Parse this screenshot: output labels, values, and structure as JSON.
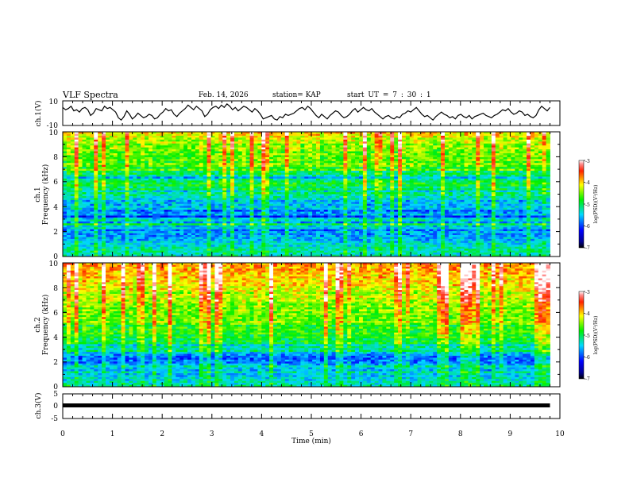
{
  "header": {
    "title": "VLF Spectra",
    "date": "Feb. 14, 2026",
    "station": "station= KAP",
    "start_time": "start  UT =   7 : 30 : 1"
  },
  "chart_data": [
    {
      "id": "ch1-waveform",
      "type": "line",
      "ylabel": "ch.1(V)",
      "ylim": [
        -10,
        10
      ],
      "yticks": [
        "10",
        "-10"
      ],
      "xlim": [
        0,
        9.8
      ],
      "y": [
        5,
        3,
        4,
        6,
        2,
        3,
        1,
        4,
        5,
        3,
        -2,
        0,
        4,
        3,
        2,
        6,
        4,
        5,
        3,
        1,
        -4,
        -6,
        -3,
        2,
        -1,
        -5,
        -3,
        0,
        -2,
        -4,
        -3,
        -1,
        -2,
        -5,
        -4,
        -1,
        1,
        4,
        2,
        3,
        -1,
        -3,
        0,
        2,
        4,
        7,
        5,
        3,
        6,
        4,
        2,
        -3,
        -1,
        3,
        5,
        6,
        4,
        7,
        5,
        8,
        6,
        3,
        5,
        2,
        4,
        6,
        5,
        3,
        1,
        4,
        2,
        -1,
        -5,
        -4,
        -3,
        -2,
        -5,
        -6,
        -3,
        -4,
        -1,
        -2,
        -1,
        0,
        2,
        4,
        5,
        3,
        6,
        4,
        1,
        -2,
        -4,
        -1,
        -3,
        -5,
        -2,
        0,
        2,
        1,
        -2,
        -4,
        -3,
        -1,
        2,
        4,
        1,
        3,
        5,
        3,
        2,
        4,
        1,
        -1,
        -3,
        -5,
        -3,
        -2,
        -4,
        -5,
        -3,
        -4,
        -1,
        0,
        2,
        1,
        3,
        5,
        2,
        -1,
        -3,
        -2,
        -4,
        -6,
        -3,
        -1,
        1,
        -1,
        -2,
        -4,
        -3,
        -5,
        -2,
        -1,
        -3,
        -4,
        -2,
        -5,
        -3,
        -2,
        -1,
        0,
        -2,
        -3,
        -4,
        -2,
        -1,
        1,
        3,
        2,
        4,
        1,
        -1,
        0,
        2,
        1,
        -2,
        -1,
        -3,
        -4,
        -2,
        3,
        6,
        4,
        2,
        5
      ]
    },
    {
      "id": "ch1-spectrogram",
      "type": "heatmap",
      "ylabel": "Frequency (kHz)",
      "channel_label": "ch.1",
      "ylim": [
        0,
        10
      ],
      "yticks": [
        "0",
        "2",
        "4",
        "6",
        "8",
        "10"
      ],
      "colorbar": {
        "label": "log(PSD)(V²/Hz)",
        "range": [
          -7,
          -3
        ],
        "ticks": [
          "-3",
          "-4",
          "-5",
          "-6",
          "-7"
        ]
      },
      "profile": [
        -5.3,
        -5.3,
        -5.2,
        -5.2,
        -5.3,
        -5.4,
        -5.4,
        -5.5,
        -5.6,
        -5.6,
        -5.7,
        -5.7,
        -5.6,
        -5.8,
        -5.5,
        -5.5,
        -5.0,
        -5.7,
        -5.3,
        -5.5,
        -6.1,
        -5.6,
        -5.7,
        -5.9,
        -5.5,
        -5.5,
        -5.6,
        -5.5,
        -5.6,
        -5.4,
        -5.3,
        -5.2,
        -5.1,
        -5.4,
        -5.0,
        -5.1,
        -4.9,
        -4.9,
        -5.0,
        -5.2,
        -5.6,
        -5.2,
        -5.0,
        -5.1,
        -4.6,
        -4.9,
        -4.6,
        -4.5,
        -4.7,
        -4.5,
        -4.6,
        -4.6,
        -4.5,
        -4.6,
        -4.5,
        -4.4,
        -4.4,
        -4.5,
        -4.3,
        -4.3,
        -4.3,
        -4.2,
        -4.1,
        -4.0
      ]
    },
    {
      "id": "ch2-spectrogram",
      "type": "heatmap",
      "ylabel": "Frequency (kHz)",
      "channel_label": "ch.2",
      "ylim": [
        0,
        10
      ],
      "yticks": [
        "0",
        "2",
        "4",
        "6",
        "8",
        "10"
      ],
      "colorbar": {
        "label": "log(PSD)(V²/Hz)",
        "range": [
          -7,
          -3
        ],
        "ticks": [
          "-3",
          "-4",
          "-5",
          "-6",
          "-7"
        ]
      },
      "profile": [
        -5.2,
        -5.3,
        -5.3,
        -5.4,
        -5.4,
        -5.5,
        -5.5,
        -5.3,
        -5.6,
        -5.5,
        -5.3,
        -5.6,
        -5.8,
        -5.8,
        -5.9,
        -5.8,
        -5.7,
        -5.5,
        -5.1,
        -5.3,
        -5.2,
        -5.4,
        -4.9,
        -4.9,
        -5.0,
        -4.8,
        -4.9,
        -4.7,
        -4.8,
        -4.7,
        -4.7,
        -4.9,
        -4.6,
        -4.4,
        -4.6,
        -4.5,
        -4.6,
        -4.5,
        -4.5,
        -4.4,
        -4.6,
        -4.4,
        -4.5,
        -4.4,
        -4.3,
        -4.3,
        -4.2,
        -4.3,
        -4.4,
        -4.2,
        -4.1,
        -4.2,
        -4.0,
        -4.1,
        -4.0,
        -4.1,
        -3.9,
        -4.0,
        -3.9,
        -3.9,
        -3.8,
        -3.9,
        -3.8,
        -3.8
      ]
    },
    {
      "id": "ch3-waveform",
      "type": "line",
      "ylabel": "ch.3(V)",
      "ylim": [
        -5,
        5
      ],
      "yticks": [
        "5",
        "0",
        "-5"
      ],
      "xlim": [
        0,
        9.8
      ],
      "y": [
        -0.5,
        -0.5
      ]
    }
  ],
  "x_axis": {
    "label": "Time (min)",
    "range": [
      0,
      10
    ],
    "ticks": [
      "0",
      "1",
      "2",
      "3",
      "4",
      "5",
      "6",
      "7",
      "8",
      "9",
      "10"
    ]
  },
  "colors": {
    "axis": "#000000",
    "trace": "#000000"
  }
}
